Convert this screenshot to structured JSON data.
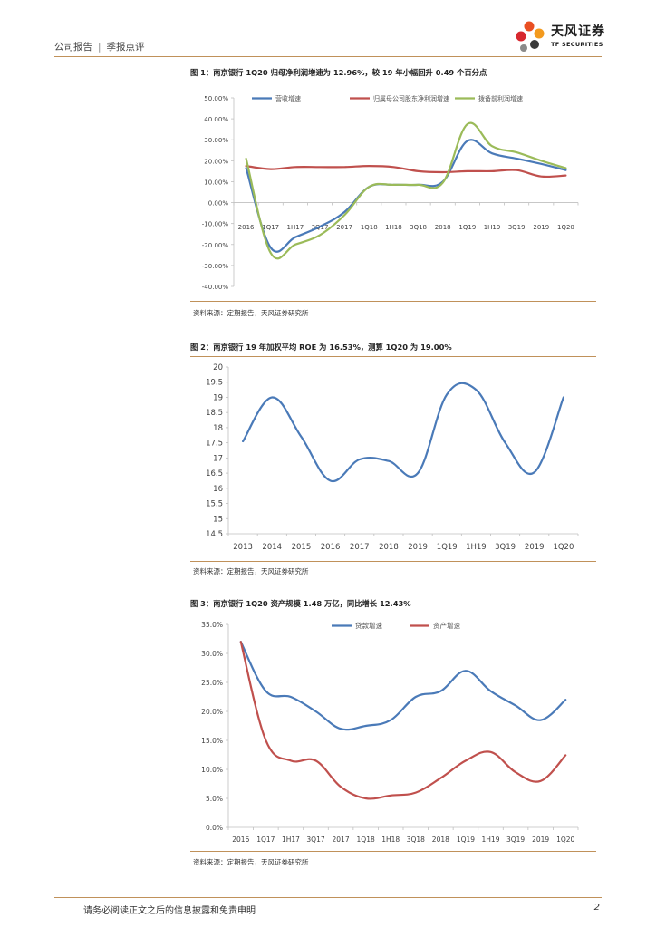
{
  "header": {
    "report_type": "公司报告",
    "report_subtype": "季报点评",
    "logo_cn": "天风证券",
    "logo_en": "TF SECURITIES",
    "logo_colors": [
      "#e94f22",
      "#f39a1e",
      "#d7282f",
      "#3a3a3a"
    ]
  },
  "figures": [
    {
      "title": "图 1：南京银行 1Q20 归母净利润增速为 12.96%，较 19 年小幅回升 0.49 个百分点",
      "source": "资料来源：定期报告，天风证券研究所"
    },
    {
      "title": "图 2：南京银行 19 年加权平均 ROE 为 16.53%，测算 1Q20 为 19.00%",
      "source": "资料来源：定期报告，天风证券研究所"
    },
    {
      "title": "图 3：南京银行 1Q20 资产规模 1.48 万亿，同比增长 12.43%",
      "source": "资料来源：定期报告，天风证券研究所"
    }
  ],
  "chart_data": [
    {
      "type": "line",
      "categories": [
        "2016",
        "1Q17",
        "1H17",
        "3Q17",
        "2017",
        "1Q18",
        "1H18",
        "3Q18",
        "2018",
        "1Q19",
        "1H19",
        "3Q19",
        "2019",
        "1Q20"
      ],
      "ylim": [
        -40,
        50
      ],
      "yticks": [
        -40,
        -30,
        -20,
        -10,
        0,
        10,
        20,
        30,
        40,
        50
      ],
      "ytick_labels": [
        "-40.00%",
        "-30.00%",
        "-20.00%",
        "-10.00%",
        "0.00%",
        "10.00%",
        "20.00%",
        "30.00%",
        "40.00%",
        "50.00%"
      ],
      "legend_position": "top",
      "series": [
        {
          "name": "营收增速",
          "color": "#4a7ab8",
          "values": [
            16.5,
            -21.5,
            -16.5,
            -11.5,
            -4.5,
            7.5,
            8.5,
            8.5,
            10.0,
            29.5,
            23.5,
            21.0,
            18.5,
            15.5
          ]
        },
        {
          "name": "归属母公司股东净利润增速",
          "color": "#c0504d",
          "values": [
            17.5,
            16.0,
            17.0,
            17.0,
            17.0,
            17.5,
            17.0,
            15.0,
            14.5,
            15.0,
            15.0,
            15.5,
            12.5,
            12.96
          ]
        },
        {
          "name": "拨备前利润增速",
          "color": "#9bbb59",
          "values": [
            21.0,
            -24.0,
            -20.0,
            -15.5,
            -6.0,
            7.5,
            8.5,
            8.5,
            9.5,
            37.5,
            27.0,
            24.0,
            20.0,
            16.5
          ]
        }
      ]
    },
    {
      "type": "line",
      "categories": [
        "2013",
        "2014",
        "2015",
        "2016",
        "2017",
        "2018",
        "2019",
        "1Q19",
        "1H19",
        "3Q19",
        "2019",
        "1Q20"
      ],
      "ylim": [
        14.5,
        20
      ],
      "yticks": [
        14.5,
        15,
        15.5,
        16,
        16.5,
        17,
        17.5,
        18,
        18.5,
        19,
        19.5,
        20
      ],
      "ytick_labels": [
        "14.5",
        "15",
        "15.5",
        "16",
        "16.5",
        "17",
        "17.5",
        "18",
        "18.5",
        "19",
        "19.5",
        "20"
      ],
      "series": [
        {
          "name": "ROE",
          "color": "#4a7ab8",
          "values": [
            17.55,
            19.0,
            17.7,
            16.25,
            16.95,
            16.9,
            16.5,
            19.1,
            19.25,
            17.5,
            16.53,
            19.0
          ]
        }
      ]
    },
    {
      "type": "line",
      "categories": [
        "2016",
        "1Q17",
        "1H17",
        "3Q17",
        "2017",
        "1Q18",
        "1H18",
        "3Q18",
        "2018",
        "1Q19",
        "1H19",
        "3Q19",
        "2019",
        "1Q20"
      ],
      "ylim": [
        0,
        35
      ],
      "yticks": [
        0,
        5,
        10,
        15,
        20,
        25,
        30,
        35
      ],
      "ytick_labels": [
        "0.0%",
        "5.0%",
        "10.0%",
        "15.0%",
        "20.0%",
        "25.0%",
        "30.0%",
        "35.0%"
      ],
      "legend_position": "top",
      "series": [
        {
          "name": "贷款增速",
          "color": "#4a7ab8",
          "values": [
            32.0,
            23.5,
            22.5,
            20.0,
            17.0,
            17.5,
            18.5,
            22.5,
            23.5,
            27.0,
            23.5,
            21.0,
            18.5,
            22.0
          ]
        },
        {
          "name": "资产增速",
          "color": "#c0504d",
          "values": [
            32.0,
            15.0,
            11.5,
            11.5,
            7.0,
            5.0,
            5.5,
            6.0,
            8.5,
            11.5,
            13.0,
            9.5,
            8.0,
            12.43
          ]
        }
      ]
    }
  ],
  "footer": {
    "disclaimer": "请务必阅读正文之后的信息披露和免责申明",
    "page_number": "2"
  }
}
